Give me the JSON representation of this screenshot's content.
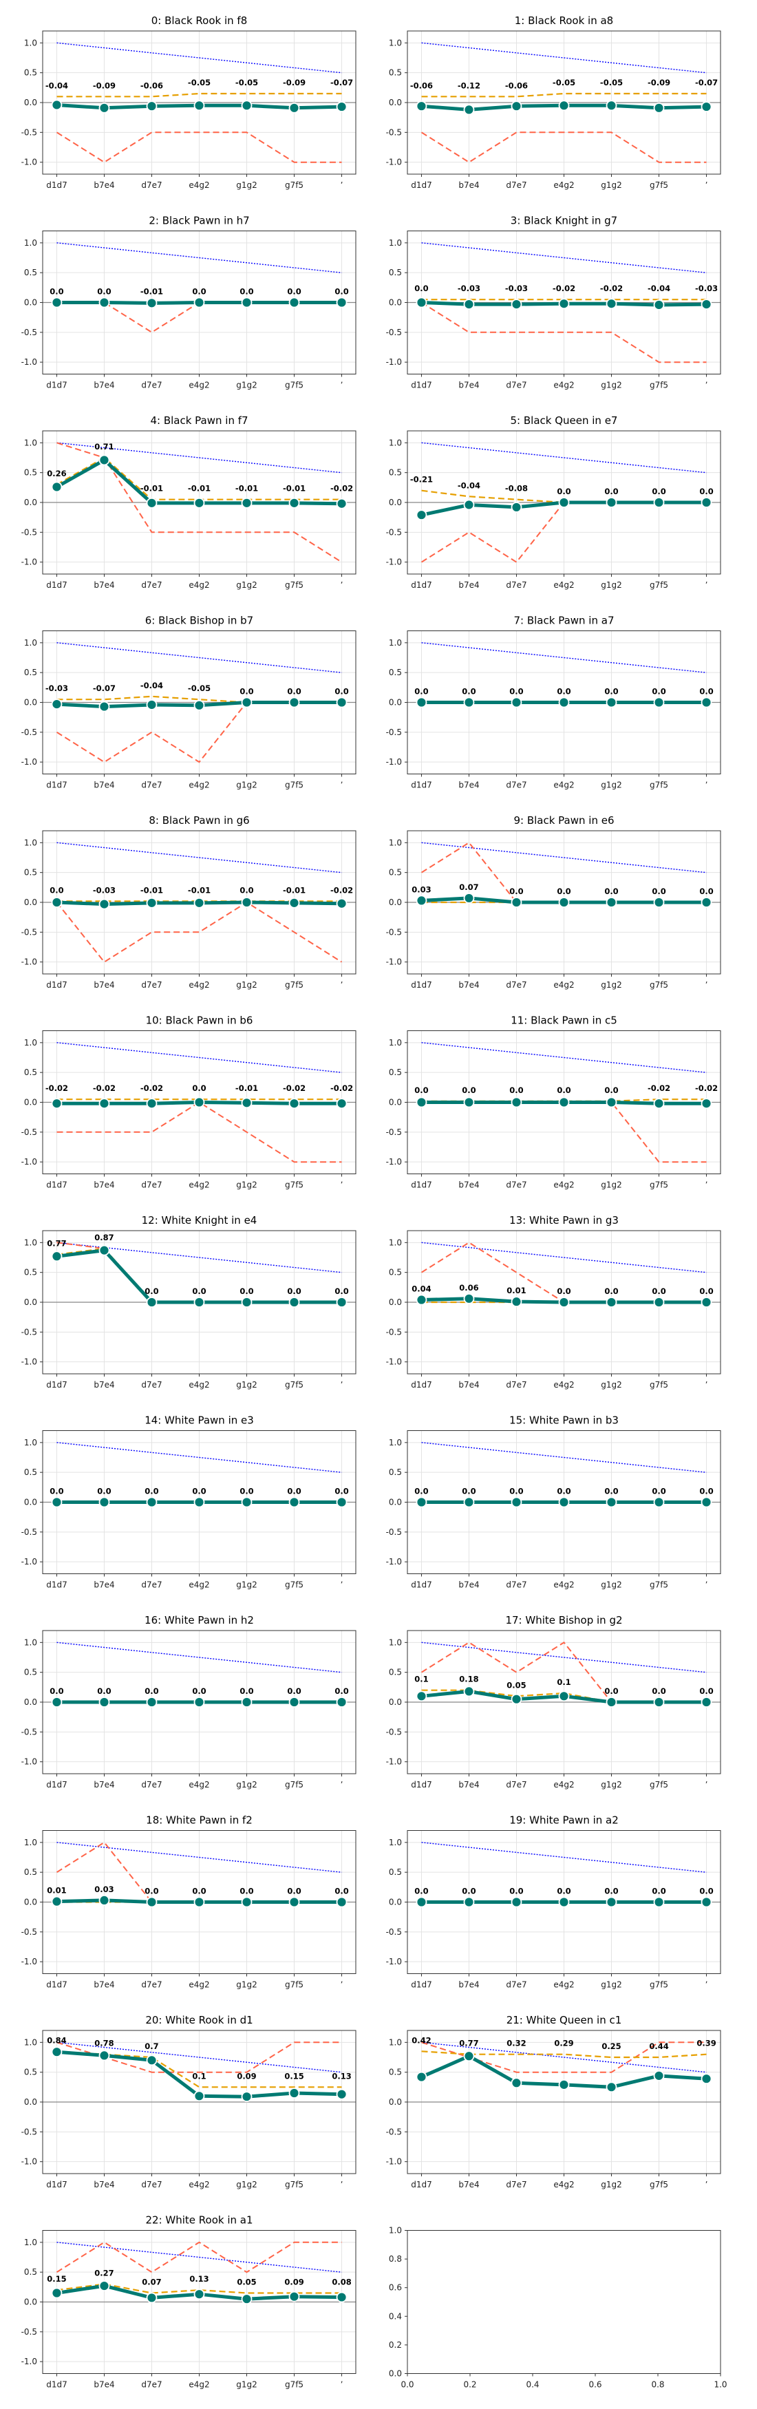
{
  "chart_data": {
    "type": "line",
    "categories": [
      "d1d7",
      "b7e4",
      "d7e7",
      "e4g2",
      "g1g2",
      "g7f5",
      "ʼ"
    ],
    "y_ticks": [
      "1.0",
      "0.5",
      "0.0",
      "-0.5",
      "-1.0"
    ],
    "ylim": [
      -1.2,
      1.2
    ],
    "grid": true,
    "colors": {
      "main": "#007A72",
      "orange": "#E69F00",
      "red": "#FF6347",
      "blue": "#0000FF",
      "zero": "#888888"
    },
    "blue_line": [
      1.0,
      0.917,
      0.833,
      0.75,
      0.667,
      0.583,
      0.5
    ],
    "panels": [
      {
        "title": "0: Black Rook in f8",
        "main": [
          -0.04,
          -0.09,
          -0.06,
          -0.05,
          -0.05,
          -0.09,
          -0.07
        ],
        "labels": [
          "-0.04",
          "-0.09",
          "-0.06",
          "-0.05",
          "-0.05",
          "-0.09",
          "-0.07"
        ],
        "orange": [
          0.1,
          0.1,
          0.1,
          0.15,
          0.15,
          0.15,
          0.15
        ],
        "red": [
          -0.5,
          -1.0,
          -0.5,
          -0.5,
          -0.5,
          -1.0,
          -1.0
        ]
      },
      {
        "title": "1: Black Rook in a8",
        "main": [
          -0.06,
          -0.12,
          -0.06,
          -0.05,
          -0.05,
          -0.09,
          -0.07
        ],
        "labels": [
          "-0.06",
          "-0.12",
          "-0.06",
          "-0.05",
          "-0.05",
          "-0.09",
          "-0.07"
        ],
        "orange": [
          0.1,
          0.1,
          0.1,
          0.15,
          0.15,
          0.15,
          0.15
        ],
        "red": [
          -0.5,
          -1.0,
          -0.5,
          -0.5,
          -0.5,
          -1.0,
          -1.0
        ]
      },
      {
        "title": "2: Black Pawn in h7",
        "main": [
          0,
          0,
          -0.01,
          0,
          0,
          0,
          0
        ],
        "labels": [
          "0.0",
          "0.0",
          "-0.01",
          "0.0",
          "0.0",
          "0.0",
          "0.0"
        ],
        "orange": [
          0,
          0,
          0,
          0,
          0,
          0,
          0
        ],
        "red": [
          0,
          0,
          -0.5,
          0,
          0,
          0,
          0
        ]
      },
      {
        "title": "3: Black Knight in g7",
        "main": [
          0,
          -0.03,
          -0.03,
          -0.02,
          -0.02,
          -0.04,
          -0.03
        ],
        "labels": [
          "0.0",
          "-0.03",
          "-0.03",
          "-0.02",
          "-0.02",
          "-0.04",
          "-0.03"
        ],
        "orange": [
          0.05,
          0.05,
          0.05,
          0.05,
          0.05,
          0.05,
          0.05
        ],
        "red": [
          0,
          -0.5,
          -0.5,
          -0.5,
          -0.5,
          -1.0,
          -1.0
        ]
      },
      {
        "title": "4: Black Pawn in f7",
        "main": [
          0.26,
          0.71,
          -0.01,
          -0.01,
          -0.01,
          -0.01,
          -0.02
        ],
        "labels": [
          "0.26",
          "0.71",
          "-0.01",
          "-0.01",
          "-0.01",
          "-0.01",
          "-0.02"
        ],
        "orange": [
          0.3,
          0.75,
          0.05,
          0.05,
          0.05,
          0.05,
          0.05
        ],
        "red": [
          1.0,
          0.75,
          -0.5,
          -0.5,
          -0.5,
          -0.5,
          -1.0
        ]
      },
      {
        "title": "5: Black Queen in e7",
        "main": [
          -0.21,
          -0.04,
          -0.08,
          0,
          0,
          0,
          0
        ],
        "labels": [
          "-0.21",
          "-0.04",
          "-0.08",
          "0.0",
          "0.0",
          "0.0",
          "0.0"
        ],
        "orange": [
          0.2,
          0.1,
          0.05,
          0,
          0,
          0,
          0
        ],
        "red": [
          -1.0,
          -0.5,
          -1.0,
          0,
          0,
          0,
          0
        ]
      },
      {
        "title": "6: Black Bishop in b7",
        "main": [
          -0.03,
          -0.07,
          -0.04,
          -0.05,
          0,
          0,
          0
        ],
        "labels": [
          "-0.03",
          "-0.07",
          "-0.04",
          "-0.05",
          "0.0",
          "0.0",
          "0.0"
        ],
        "orange": [
          0.05,
          0.05,
          0.1,
          0.05,
          0,
          0,
          0
        ],
        "red": [
          -0.5,
          -1.0,
          -0.5,
          -1.0,
          0,
          0,
          0
        ]
      },
      {
        "title": "7: Black Pawn in a7",
        "main": [
          0,
          0,
          0,
          0,
          0,
          0,
          0
        ],
        "labels": [
          "0.0",
          "0.0",
          "0.0",
          "0.0",
          "0.0",
          "0.0",
          "0.0"
        ],
        "orange": [
          0,
          0,
          0,
          0,
          0,
          0,
          0
        ],
        "red": [
          0,
          0,
          0,
          0,
          0,
          0,
          0
        ]
      },
      {
        "title": "8: Black Pawn in g6",
        "main": [
          0,
          -0.03,
          -0.01,
          -0.01,
          0,
          -0.01,
          -0.02
        ],
        "labels": [
          "0.0",
          "-0.03",
          "-0.01",
          "-0.01",
          "0.0",
          "-0.01",
          "-0.02"
        ],
        "orange": [
          0.02,
          0.02,
          0.02,
          0.02,
          0.02,
          0.02,
          0.02
        ],
        "red": [
          0,
          -1.0,
          -0.5,
          -0.5,
          0,
          -0.5,
          -1.0
        ]
      },
      {
        "title": "9: Black Pawn in e6",
        "main": [
          0.03,
          0.07,
          0,
          0,
          0,
          0,
          0
        ],
        "labels": [
          "0.03",
          "0.07",
          "0.0",
          "0.0",
          "0.0",
          "0.0",
          "0.0"
        ],
        "orange": [
          0,
          0,
          0,
          0,
          0,
          0,
          0
        ],
        "red": [
          0.5,
          1.0,
          0,
          0,
          0,
          0,
          0
        ]
      },
      {
        "title": "10: Black Pawn in b6",
        "main": [
          -0.02,
          -0.02,
          -0.02,
          0,
          -0.01,
          -0.02,
          -0.02
        ],
        "labels": [
          "-0.02",
          "-0.02",
          "-0.02",
          "0.0",
          "-0.01",
          "-0.02",
          "-0.02"
        ],
        "orange": [
          0.05,
          0.05,
          0.05,
          0.05,
          0.05,
          0.05,
          0.05
        ],
        "red": [
          -0.5,
          -0.5,
          -0.5,
          0,
          -0.5,
          -1.0,
          -1.0
        ]
      },
      {
        "title": "11: Black Pawn in c5",
        "main": [
          0,
          0,
          0,
          0,
          0,
          -0.02,
          -0.02
        ],
        "labels": [
          "0.0",
          "0.0",
          "0.0",
          "0.0",
          "0.0",
          "-0.02",
          "-0.02"
        ],
        "orange": [
          0.02,
          0.02,
          0.02,
          0.02,
          0.02,
          0.05,
          0.05
        ],
        "red": [
          0,
          0,
          0,
          0,
          0,
          -1.0,
          -1.0
        ]
      },
      {
        "title": "12: White Knight in e4",
        "main": [
          0.77,
          0.87,
          0,
          0,
          0,
          0,
          0
        ],
        "labels": [
          "0.77",
          "0.87",
          "0.0",
          "0.0",
          "0.0",
          "0.0",
          "0.0"
        ],
        "orange": [
          0.8,
          0.9,
          0,
          0,
          0,
          0,
          0
        ],
        "red": [
          1.0,
          0.9,
          0,
          0,
          0,
          0,
          0
        ]
      },
      {
        "title": "13: White Pawn in g3",
        "main": [
          0.04,
          0.06,
          0.01,
          0,
          0,
          0,
          0
        ],
        "labels": [
          "0.04",
          "0.06",
          "0.01",
          "0.0",
          "0.0",
          "0.0",
          "0.0"
        ],
        "orange": [
          0,
          0,
          0,
          0,
          0,
          0,
          0
        ],
        "red": [
          0.5,
          1.0,
          0.5,
          0,
          0,
          0,
          0
        ]
      },
      {
        "title": "14: White Pawn in e3",
        "main": [
          0,
          0,
          0,
          0,
          0,
          0,
          0
        ],
        "labels": [
          "0.0",
          "0.0",
          "0.0",
          "0.0",
          "0.0",
          "0.0",
          "0.0"
        ],
        "orange": [
          0,
          0,
          0,
          0,
          0,
          0,
          0
        ],
        "red": [
          0,
          0,
          0,
          0,
          0,
          0,
          0
        ]
      },
      {
        "title": "15: White Pawn in b3",
        "main": [
          0,
          0,
          0,
          0,
          0,
          0,
          0
        ],
        "labels": [
          "0.0",
          "0.0",
          "0.0",
          "0.0",
          "0.0",
          "0.0",
          "0.0"
        ],
        "orange": [
          0,
          0,
          0,
          0,
          0,
          0,
          0
        ],
        "red": [
          0,
          0,
          0,
          0,
          0,
          0,
          0
        ]
      },
      {
        "title": "16: White Pawn in h2",
        "main": [
          0,
          0,
          0,
          0,
          0,
          0,
          0
        ],
        "labels": [
          "0.0",
          "0.0",
          "0.0",
          "0.0",
          "0.0",
          "0.0",
          "0.0"
        ],
        "orange": [
          0,
          0,
          0,
          0,
          0,
          0,
          0
        ],
        "red": [
          0,
          0,
          0,
          0,
          0,
          0,
          0
        ]
      },
      {
        "title": "17: White Bishop in g2",
        "main": [
          0.1,
          0.18,
          0.05,
          0.1,
          0,
          0,
          0
        ],
        "labels": [
          "0.1",
          "0.18",
          "0.05",
          "0.1",
          "0.0",
          "0.0",
          "0.0"
        ],
        "orange": [
          0.2,
          0.2,
          0.1,
          0.15,
          0,
          0,
          0
        ],
        "red": [
          0.5,
          1.0,
          0.5,
          1.0,
          0,
          0,
          0
        ]
      },
      {
        "title": "18: White Pawn in f2",
        "main": [
          0.01,
          0.03,
          0,
          0,
          0,
          0,
          0
        ],
        "labels": [
          "0.01",
          "0.03",
          "0.0",
          "0.0",
          "0.0",
          "0.0",
          "0.0"
        ],
        "orange": [
          0,
          0,
          0,
          0,
          0,
          0,
          0
        ],
        "red": [
          0.5,
          1.0,
          0,
          0,
          0,
          0,
          0
        ]
      },
      {
        "title": "19: White Pawn in a2",
        "main": [
          0,
          0,
          0,
          0,
          0,
          0,
          0
        ],
        "labels": [
          "0.0",
          "0.0",
          "0.0",
          "0.0",
          "0.0",
          "0.0",
          "0.0"
        ],
        "orange": [
          0,
          0,
          0,
          0,
          0,
          0,
          0
        ],
        "red": [
          0,
          0,
          0,
          0,
          0,
          0,
          0
        ]
      },
      {
        "title": "20: White Rook in d1",
        "main": [
          0.84,
          0.78,
          0.7,
          0.1,
          0.09,
          0.15,
          0.13
        ],
        "labels": [
          "0.84",
          "0.78",
          "0.7",
          "0.1",
          "0.09",
          "0.15",
          "0.13"
        ],
        "orange": [
          0.85,
          0.8,
          0.75,
          0.25,
          0.25,
          0.25,
          0.25
        ],
        "red": [
          1.0,
          0.75,
          0.5,
          0.5,
          0.5,
          1.0,
          1.0
        ]
      },
      {
        "title": "21: White Queen in c1",
        "main": [
          0.42,
          0.77,
          0.32,
          0.29,
          0.25,
          0.44,
          0.39
        ],
        "labels": [
          "0.42",
          "0.77",
          "0.32",
          "0.29",
          "0.25",
          "0.44",
          "0.39"
        ],
        "orange": [
          0.85,
          0.8,
          0.8,
          0.8,
          0.75,
          0.75,
          0.8
        ],
        "red": [
          1.0,
          0.75,
          0.5,
          0.5,
          0.5,
          1.0,
          1.0
        ]
      },
      {
        "title": "22: White Rook in a1",
        "main": [
          0.15,
          0.27,
          0.07,
          0.13,
          0.05,
          0.09,
          0.08
        ],
        "labels": [
          "0.15",
          "0.27",
          "0.07",
          "0.13",
          "0.05",
          "0.09",
          "0.08"
        ],
        "orange": [
          0.2,
          0.3,
          0.15,
          0.2,
          0.15,
          0.15,
          0.15
        ],
        "red": [
          0.5,
          1.0,
          0.5,
          1.0,
          0.5,
          1.0,
          1.0
        ]
      }
    ],
    "empty_panel": {
      "x_ticks": [
        "0.0",
        "0.2",
        "0.4",
        "0.6",
        "0.8",
        "1.0"
      ],
      "y_ticks": [
        "1.0",
        "0.8",
        "0.6",
        "0.4",
        "0.2",
        "0.0"
      ]
    }
  }
}
